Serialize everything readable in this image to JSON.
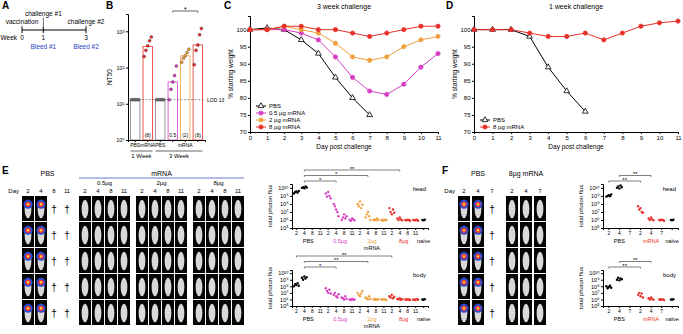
{
  "chart_data": [
    {
      "type": "timeline",
      "panel": "A",
      "unit_label": "Week",
      "weeks": [
        0,
        1,
        3
      ],
      "events_above": [
        "vaccination",
        "challenge #1",
        "challenge #2"
      ],
      "events_below": [
        null,
        "Bleed #1",
        "Bleed #2"
      ]
    },
    {
      "type": "bar",
      "panel": "B",
      "y_label": "NT50",
      "categories": [
        "PBS",
        "mRNA",
        "PBS",
        null,
        "mRNA",
        null
      ],
      "dose_labels": [
        null,
        "(8)",
        null,
        "0.5",
        "(2)",
        "(8)"
      ],
      "values": [
        13,
        380,
        13,
        40,
        210,
        420
      ],
      "points": [
        [
          13,
          13,
          13,
          13,
          13
        ],
        [
          200,
          300,
          400,
          550,
          700
        ],
        [
          13,
          13,
          13,
          13,
          13
        ],
        [
          13,
          25,
          40,
          60,
          110
        ],
        [
          140,
          180,
          210,
          260,
          320
        ],
        [
          120,
          300,
          420,
          800,
          1200
        ]
      ],
      "colors": [
        "#7f7f7f",
        "#e8302a",
        "#7f7f7f",
        "#d63fc4",
        "#f0a03c",
        "#e8302a"
      ],
      "log": "y",
      "ylim": [
        1,
        3000
      ],
      "yticks": [
        {
          "value": 1,
          "label": "10⁰"
        },
        {
          "value": 10,
          "label": "10¹"
        },
        {
          "value": 100,
          "label": "10²"
        },
        {
          "value": 1000,
          "label": "10³"
        }
      ],
      "reference_line": {
        "value": 13,
        "label": "LOD 13"
      },
      "groups": [
        {
          "label": "1 Week",
          "from": 0,
          "to": 1
        },
        {
          "label": "3 Week",
          "from": 2,
          "to": 5
        }
      ],
      "significance": [
        {
          "from": 3,
          "to": 5,
          "label": "*"
        }
      ]
    },
    {
      "type": "line",
      "panel": "C",
      "title": "3 week challenge",
      "x_label": "Day post challenge",
      "y_label": "% starting weight",
      "x": [
        0,
        1,
        2,
        3,
        4,
        5,
        6,
        7,
        8,
        9,
        10,
        11
      ],
      "xlim": [
        0,
        11
      ],
      "xticks": [
        0,
        1,
        2,
        3,
        4,
        5,
        6,
        7,
        8,
        9,
        10,
        11
      ],
      "ylim": [
        70,
        104
      ],
      "yticks": [
        70,
        75,
        80,
        85,
        90,
        95,
        100
      ],
      "legend": "bottom-left",
      "series": [
        {
          "name": "PBS",
          "color": "#000000",
          "marker": "triangle",
          "values": [
            100,
            100.5,
            100,
            97,
            93,
            86,
            80,
            75,
            null,
            null,
            null,
            null
          ]
        },
        {
          "name": "0.5 µg mRNA",
          "color": "#d63fc4",
          "marker": "circle",
          "values": [
            100,
            100,
            100,
            99,
            97,
            92,
            86,
            82,
            81,
            84,
            89,
            93
          ]
        },
        {
          "name": "2 µg mRNA",
          "color": "#f0a03c",
          "marker": "circle",
          "values": [
            100,
            100,
            101,
            100,
            99,
            96,
            92,
            91,
            92,
            95,
            97,
            98
          ]
        },
        {
          "name": "8 µg mRNA",
          "color": "#e8302a",
          "marker": "circle",
          "values": [
            100,
            100,
            101,
            101,
            100,
            100,
            99,
            98,
            99,
            100,
            101,
            101
          ]
        }
      ]
    },
    {
      "type": "line",
      "panel": "D",
      "title": "1 week challenge",
      "x_label": "Day post challenge",
      "y_label": "% starting weight",
      "x": [
        0,
        1,
        2,
        3,
        4,
        5,
        6,
        7,
        8,
        9,
        10,
        11
      ],
      "xlim": [
        0,
        11
      ],
      "xticks": [
        0,
        1,
        2,
        3,
        4,
        5,
        6,
        7,
        8,
        9,
        10,
        11
      ],
      "ylim": [
        70,
        104
      ],
      "yticks": [
        70,
        75,
        80,
        85,
        90,
        95,
        100
      ],
      "legend": "bottom-left",
      "series": [
        {
          "name": "PBS",
          "color": "#000000",
          "marker": "triangle",
          "values": [
            100,
            100,
            100,
            98,
            89,
            82,
            76,
            null,
            null,
            null,
            null,
            null
          ]
        },
        {
          "name": "8 µg mRNA",
          "color": "#e8302a",
          "marker": "circle",
          "values": [
            100,
            100,
            100,
            99,
            98,
            98,
            99,
            97,
            99,
            101,
            102,
            102.5
          ]
        }
      ]
    },
    {
      "type": "image_grid",
      "panel": "E",
      "day_label": "Day",
      "dead_symbol": "†",
      "rows": 5,
      "header": {
        "label": "mRNA",
        "from": 1,
        "to": 3
      },
      "groups": [
        {
          "name": "PBS",
          "days": [
            2,
            4,
            8,
            11
          ],
          "dead": [
            false,
            false,
            true,
            true
          ]
        },
        {
          "name": "0.5µg",
          "days": [
            2,
            4,
            8,
            11
          ],
          "dead": [
            false,
            false,
            false,
            false
          ]
        },
        {
          "name": "2µg",
          "days": [
            2,
            4,
            8,
            11
          ],
          "dead": [
            false,
            false,
            false,
            false
          ]
        },
        {
          "name": "8µg",
          "days": [
            2,
            4,
            8,
            11
          ],
          "dead": [
            false,
            false,
            false,
            false
          ]
        }
      ]
    },
    {
      "type": "strip",
      "plot_label": "head",
      "y_label": "total photon flux",
      "categories": [
        "2",
        "4",
        "8",
        "11",
        "2",
        "4",
        "8",
        "11",
        "2",
        "4",
        "8",
        "11",
        "2",
        "4",
        "8",
        "11",
        null
      ],
      "groups": [
        {
          "label": "PBS",
          "from": 0,
          "to": 3,
          "color": "#000000"
        },
        {
          "label": "0.5µg",
          "from": 4,
          "to": 7,
          "color": "#d63fc4"
        },
        {
          "label": "2µg",
          "from": 8,
          "to": 11,
          "color": "#f0a03c"
        },
        {
          "label": "8µg",
          "from": 12,
          "to": 15,
          "color": "#e8302a"
        },
        {
          "label": "naïve",
          "from": 16,
          "to": 16,
          "color": "#000000"
        }
      ],
      "group_header": {
        "label": "mRNA",
        "from": 4,
        "to": 15
      },
      "values": [
        [
          2000000000.0,
          3000000000.0,
          3500000000.0,
          2500000000.0,
          4000000000.0
        ],
        [
          10000000000.0,
          12000000000.0,
          9000000000.0,
          15000000000.0,
          11000000000.0
        ],
        null,
        null,
        [
          2000000000.0,
          800000000.0,
          3000000000.0,
          1000000000.0,
          500000000.0
        ],
        [
          100000000.0,
          50000000.0,
          20000000.0,
          10000000.0,
          3000000.0
        ],
        [
          1000000.0,
          2000000.0,
          5000000.0,
          1500000.0,
          3000000.0
        ],
        [
          1000000.0,
          800000.0,
          1500000.0,
          1200000.0,
          900000.0
        ],
        [
          100000000.0,
          50000000.0,
          200000000.0,
          30000000.0,
          80000000.0
        ],
        [
          2000000.0,
          5000000.0,
          10000000.0,
          3000000.0,
          1000000.0
        ],
        [
          1000000.0,
          1200000.0,
          900000.0,
          1500000.0,
          1000000.0
        ],
        [
          1000000.0,
          800000.0,
          1100000.0,
          900000.0,
          1000000.0
        ],
        [
          30000000.0,
          10000000.0,
          5000000.0,
          20000000.0,
          8000000.0
        ],
        [
          1500000.0,
          1000000.0,
          2000000.0,
          1200000.0,
          900000.0
        ],
        [
          1000000.0,
          900000.0,
          1100000.0,
          1000000.0,
          800000.0
        ],
        [
          1000000.0,
          900000.0,
          1000000.0,
          1100000.0,
          800000.0
        ],
        [
          1000000.0,
          900000.0,
          1100000.0
        ]
      ],
      "log": "y",
      "ylim": [
        100000.0,
        30000000000.0
      ],
      "yticks": [
        {
          "value": 100000.0,
          "label": "10⁵"
        },
        {
          "value": 1000000.0,
          "label": "10⁶"
        },
        {
          "value": 10000000.0,
          "label": "10⁷"
        },
        {
          "value": 100000000.0,
          "label": "10⁸"
        },
        {
          "value": 1000000000.0,
          "label": "10⁹"
        },
        {
          "value": 10000000000.0,
          "label": "10¹⁰"
        }
      ],
      "significance": [
        {
          "from": 1,
          "to": 5,
          "label": "*"
        },
        {
          "from": 1,
          "to": 9,
          "label": "*"
        },
        {
          "from": 1,
          "to": 13,
          "label": "**"
        }
      ]
    },
    {
      "type": "strip",
      "plot_label": "body",
      "y_label": "total photon flux",
      "categories": [
        "2",
        "4",
        "8",
        "11",
        "2",
        "4",
        "8",
        "11",
        "2",
        "4",
        "8",
        "11",
        "2",
        "4",
        "8",
        "11",
        null
      ],
      "groups": [
        {
          "label": "PBS",
          "from": 0,
          "to": 3,
          "color": "#000000"
        },
        {
          "label": "0.5µg",
          "from": 4,
          "to": 7,
          "color": "#d63fc4"
        },
        {
          "label": "2µg",
          "from": 8,
          "to": 11,
          "color": "#f0a03c"
        },
        {
          "label": "8µg",
          "from": 12,
          "to": 15,
          "color": "#e8302a"
        },
        {
          "label": "naïve",
          "from": 16,
          "to": 16,
          "color": "#000000"
        }
      ],
      "group_header": {
        "label": "mRNA",
        "from": 4,
        "to": 15
      },
      "values": [
        [
          100000000.0,
          200000000.0,
          150000000.0,
          300000000.0,
          120000000.0
        ],
        [
          2000000000.0,
          1000000000.0,
          3000000000.0,
          1500000000.0,
          2500000000.0
        ],
        null,
        null,
        [
          50000000.0,
          20000000.0,
          10000000.0,
          30000000.0,
          8000000.0
        ],
        [
          5000000.0,
          10000000.0,
          3000000.0,
          2000000.0,
          6000000.0
        ],
        [
          2000000.0,
          1500000.0,
          1000000.0,
          3000000.0,
          1200000.0
        ],
        [
          1000000.0,
          800000.0,
          1200000.0,
          900000.0,
          1000000.0
        ],
        [
          10000000.0,
          5000000.0,
          3000000.0,
          8000000.0,
          20000000.0
        ],
        [
          2000000.0,
          1500000.0,
          1000000.0,
          3000000.0,
          1200000.0
        ],
        [
          1000000.0,
          1200000.0,
          900000.0,
          1000000.0,
          1100000.0
        ],
        [
          1000000.0,
          900000.0,
          1100000.0,
          1000000.0,
          800000.0
        ],
        [
          3000000.0,
          2000000.0,
          5000000.0,
          1500000.0,
          2500000.0
        ],
        [
          1200000.0,
          1000000.0,
          1500000.0,
          900000.0,
          1100000.0
        ],
        [
          1000000.0,
          900000.0,
          1100000.0,
          1000000.0,
          800000.0
        ],
        [
          1000000.0,
          800000.0,
          1000000.0,
          1100000.0,
          900000.0
        ],
        [
          1000000.0,
          900000.0,
          1100000.0
        ]
      ],
      "log": "y",
      "ylim": [
        100000.0,
        30000000000.0
      ],
      "yticks": [
        {
          "value": 100000.0,
          "label": "10⁵"
        },
        {
          "value": 1000000.0,
          "label": "10⁶"
        },
        {
          "value": 10000000.0,
          "label": "10⁷"
        },
        {
          "value": 100000000.0,
          "label": "10⁸"
        },
        {
          "value": 1000000000.0,
          "label": "10⁹"
        },
        {
          "value": 10000000000.0,
          "label": "10¹⁰"
        }
      ],
      "significance": [
        {
          "from": 1,
          "to": 5,
          "label": "*"
        },
        {
          "from": 1,
          "to": 9,
          "label": "**"
        },
        {
          "from": 0,
          "to": 12,
          "label": "**"
        }
      ]
    },
    {
      "type": "image_grid",
      "panel": "F",
      "day_label": "Day",
      "dead_symbol": "†",
      "rows": 5,
      "groups": [
        {
          "name": "PBS",
          "days": [
            2,
            4,
            7
          ],
          "dead": [
            false,
            false,
            true
          ]
        },
        {
          "name": "8µg mRNA",
          "days": [
            2,
            4,
            7
          ],
          "dead": [
            false,
            false,
            false
          ]
        }
      ]
    },
    {
      "type": "strip",
      "plot_label": "head",
      "y_label": "total photon flux",
      "categories": [
        "2",
        "4",
        "7",
        "2",
        "4",
        "7",
        null
      ],
      "groups": [
        {
          "label": "PBS",
          "from": 0,
          "to": 2,
          "color": "#000000"
        },
        {
          "label": "mRNA",
          "from": 3,
          "to": 5,
          "color": "#e8302a"
        },
        {
          "label": "naïve",
          "from": 6,
          "to": 6,
          "color": "#000000"
        }
      ],
      "values": [
        [
          800000000.0,
          1000000000.0,
          1200000000.0,
          900000000.0,
          1500000000.0
        ],
        [
          10000000000.0,
          15000000000.0,
          8000000000.0,
          20000000000.0,
          12000000000.0
        ],
        null,
        [
          50000000.0,
          20000000.0,
          30000000.0,
          10000000.0,
          8000000.0
        ],
        [
          1500000.0,
          1000000.0,
          2000000.0,
          1200000.0,
          900000.0
        ],
        [
          1000000.0,
          900000.0,
          1100000.0,
          1000000.0,
          800000.0
        ],
        [
          1000000.0,
          900000.0,
          1100000.0
        ]
      ],
      "log": "y",
      "ylim": [
        100000.0,
        30000000000.0
      ],
      "yticks": [
        {
          "value": 100000.0,
          "label": "10⁵"
        },
        {
          "value": 1000000.0,
          "label": "10⁶"
        },
        {
          "value": 10000000.0,
          "label": "10⁷"
        },
        {
          "value": 100000000.0,
          "label": "10⁸"
        },
        {
          "value": 1000000000.0,
          "label": "10⁹"
        },
        {
          "value": 10000000000.0,
          "label": "10¹⁰"
        }
      ],
      "significance": [
        {
          "from": 0,
          "to": 3,
          "label": "**"
        },
        {
          "from": 1,
          "to": 4,
          "label": "**"
        }
      ]
    },
    {
      "type": "strip",
      "plot_label": "body",
      "y_label": "total photon flux",
      "categories": [
        "2",
        "4",
        "7",
        "2",
        "4",
        "7",
        null
      ],
      "groups": [
        {
          "label": "PBS",
          "from": 0,
          "to": 2,
          "color": "#000000"
        },
        {
          "label": "mRNA",
          "from": 3,
          "to": 5,
          "color": "#e8302a"
        },
        {
          "label": "naïve",
          "from": 6,
          "to": 6,
          "color": "#000000"
        }
      ],
      "values": [
        [
          100000000.0,
          50000000.0,
          80000000.0,
          120000000.0,
          60000000.0
        ],
        [
          1000000000.0,
          2000000000.0,
          800000000.0,
          1500000000.0,
          1200000000.0
        ],
        null,
        [
          5000000.0,
          10000000.0,
          3000000.0,
          8000000.0,
          2000000.0
        ],
        [
          1500000.0,
          1000000.0,
          2000000.0,
          1200000.0,
          900000.0
        ],
        [
          1000000.0,
          900000.0,
          1100000.0,
          1000000.0,
          800000.0
        ],
        [
          1000000.0,
          900000.0,
          1100000.0
        ]
      ],
      "log": "y",
      "ylim": [
        100000.0,
        30000000000.0
      ],
      "yticks": [
        {
          "value": 100000.0,
          "label": "10⁵"
        },
        {
          "value": 1000000.0,
          "label": "10⁶"
        },
        {
          "value": 10000000.0,
          "label": "10⁷"
        },
        {
          "value": 100000000.0,
          "label": "10⁸"
        },
        {
          "value": 1000000000.0,
          "label": "10⁹"
        },
        {
          "value": 10000000000.0,
          "label": "10¹⁰"
        }
      ],
      "significance": [
        {
          "from": 0,
          "to": 3,
          "label": "**"
        },
        {
          "from": 1,
          "to": 4,
          "label": "**"
        }
      ]
    }
  ]
}
